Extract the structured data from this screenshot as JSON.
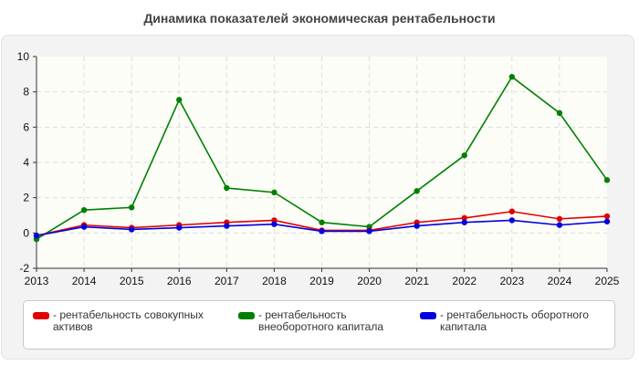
{
  "chart_data": {
    "type": "line",
    "title": "Динамика показателей экономическая рентабельности",
    "x": [
      "2013",
      "2014",
      "2015",
      "2016",
      "2017",
      "2018",
      "2019",
      "2020",
      "2021",
      "2022",
      "2023",
      "2024",
      "2025"
    ],
    "ylim": [
      -2,
      10
    ],
    "yticks": [
      -2,
      0,
      2,
      4,
      6,
      8,
      10
    ],
    "grid": true,
    "legend_position": "bottom",
    "series": [
      {
        "name": "- рентабельность совокупных активов",
        "color": "#e00000",
        "values": [
          -0.15,
          0.45,
          0.3,
          0.45,
          0.6,
          0.72,
          0.15,
          0.15,
          0.6,
          0.85,
          1.22,
          0.8,
          0.95
        ]
      },
      {
        "name": "- рентабельность внеоборотного капитала",
        "color": "#008000",
        "values": [
          -0.35,
          1.3,
          1.45,
          7.55,
          2.55,
          2.3,
          0.6,
          0.35,
          2.38,
          4.4,
          8.85,
          6.8,
          3.0
        ]
      },
      {
        "name": "- рентабельность оборотного капитала",
        "color": "#0000e0",
        "values": [
          -0.15,
          0.35,
          0.2,
          0.3,
          0.4,
          0.5,
          0.1,
          0.1,
          0.4,
          0.6,
          0.72,
          0.45,
          0.65
        ]
      }
    ]
  }
}
